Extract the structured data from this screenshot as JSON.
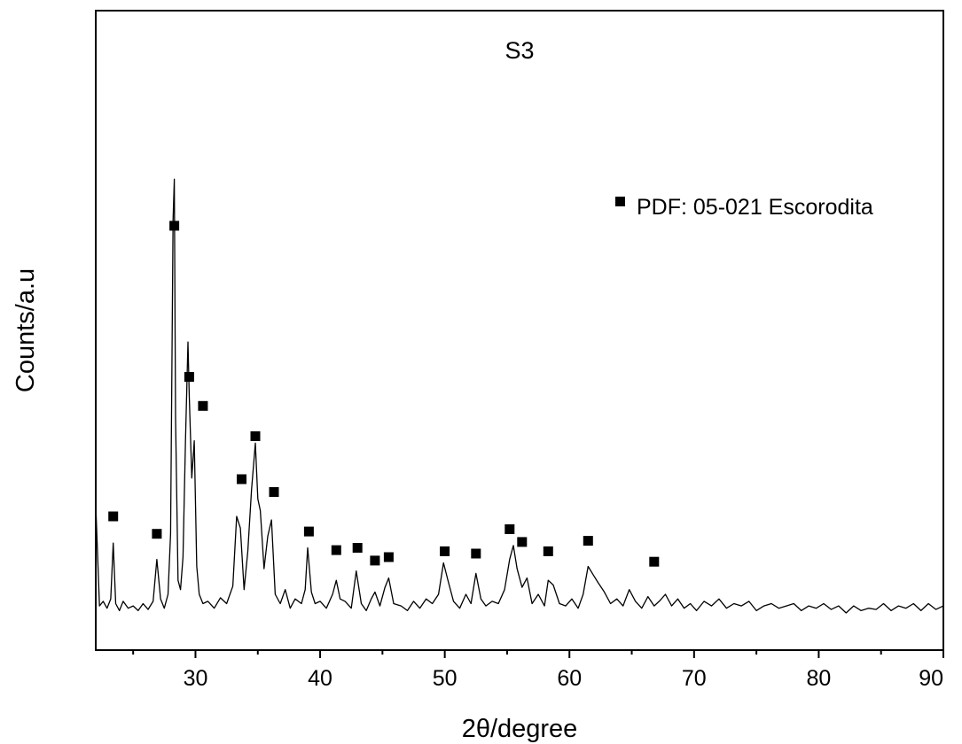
{
  "chart_data": {
    "type": "line",
    "title": "S3",
    "xlabel": "2θ/degree",
    "ylabel": "Counts/a.u",
    "xlim": [
      22,
      90
    ],
    "ylim": [
      -30,
      520
    ],
    "x_ticks": [
      30,
      40,
      50,
      60,
      70,
      80,
      90
    ],
    "x_tick_labels": [
      "30",
      "40",
      "50",
      "60",
      "70",
      "80",
      "90"
    ],
    "grid": false,
    "legend": {
      "position": "top-right",
      "entries": [
        {
          "marker": "filled-square",
          "label": "PDF: 05-021 Escorodita"
        }
      ]
    },
    "series": [
      {
        "style": "line",
        "x": [
          22.0,
          22.3,
          22.6,
          22.9,
          23.2,
          23.4,
          23.6,
          23.9,
          24.2,
          24.6,
          25.0,
          25.4,
          25.8,
          26.2,
          26.6,
          26.9,
          27.2,
          27.5,
          27.8,
          28.0,
          28.2,
          28.3,
          28.4,
          28.6,
          28.8,
          29.0,
          29.2,
          29.4,
          29.5,
          29.7,
          29.9,
          30.1,
          30.3,
          30.6,
          31.0,
          31.5,
          32.0,
          32.5,
          33.0,
          33.3,
          33.6,
          33.9,
          34.2,
          34.5,
          34.8,
          35.0,
          35.2,
          35.5,
          35.8,
          36.1,
          36.4,
          36.8,
          37.2,
          37.6,
          38.0,
          38.5,
          38.8,
          39.0,
          39.3,
          39.6,
          40.0,
          40.5,
          41.0,
          41.3,
          41.6,
          42.0,
          42.5,
          42.9,
          43.3,
          43.7,
          44.1,
          44.4,
          44.8,
          45.2,
          45.5,
          45.9,
          46.5,
          47.0,
          47.5,
          48.0,
          48.5,
          49.0,
          49.5,
          49.9,
          50.3,
          50.7,
          51.2,
          51.7,
          52.1,
          52.5,
          52.9,
          53.3,
          53.8,
          54.3,
          54.8,
          55.2,
          55.5,
          55.8,
          56.2,
          56.6,
          57.0,
          57.5,
          58.0,
          58.3,
          58.7,
          59.2,
          59.7,
          60.2,
          60.7,
          61.1,
          61.5,
          61.9,
          62.3,
          62.8,
          63.3,
          63.8,
          64.3,
          64.8,
          65.3,
          65.8,
          66.3,
          66.8,
          67.2,
          67.7,
          68.2,
          68.7,
          69.2,
          69.7,
          70.2,
          70.8,
          71.4,
          72.0,
          72.6,
          73.2,
          73.8,
          74.4,
          75.0,
          75.6,
          76.2,
          76.8,
          77.4,
          78.0,
          78.6,
          79.2,
          79.8,
          80.4,
          81.0,
          81.6,
          82.2,
          82.8,
          83.4,
          84.0,
          84.6,
          85.2,
          85.8,
          86.4,
          87.0,
          87.6,
          88.2,
          88.8,
          89.4,
          90.0
        ],
        "y": [
          95,
          8,
          12,
          6,
          14,
          62,
          10,
          4,
          12,
          6,
          8,
          4,
          10,
          5,
          12,
          48,
          14,
          6,
          18,
          70,
          340,
          375,
          170,
          30,
          22,
          50,
          150,
          235,
          190,
          118,
          150,
          42,
          18,
          10,
          12,
          6,
          15,
          10,
          25,
          85,
          75,
          22,
          55,
          108,
          148,
          100,
          90,
          40,
          68,
          82,
          18,
          10,
          22,
          6,
          14,
          10,
          22,
          58,
          20,
          10,
          12,
          6,
          18,
          30,
          14,
          12,
          6,
          38,
          10,
          4,
          14,
          20,
          8,
          24,
          32,
          10,
          8,
          4,
          12,
          6,
          14,
          10,
          18,
          45,
          28,
          12,
          6,
          18,
          10,
          36,
          14,
          8,
          12,
          10,
          22,
          48,
          60,
          40,
          24,
          32,
          10,
          18,
          8,
          30,
          26,
          10,
          8,
          14,
          6,
          18,
          42,
          35,
          28,
          20,
          10,
          14,
          8,
          22,
          12,
          6,
          16,
          8,
          12,
          18,
          8,
          14,
          6,
          10,
          4,
          12,
          8,
          14,
          6,
          10,
          8,
          12,
          4,
          8,
          10,
          6,
          8,
          10,
          4,
          8,
          6,
          10,
          5,
          8,
          2,
          8,
          4,
          6,
          5,
          10,
          4,
          8,
          6,
          10,
          4,
          10,
          5,
          8
        ]
      },
      {
        "style": "markers",
        "marker": "filled-square",
        "x": [
          23.4,
          26.9,
          28.3,
          29.5,
          30.6,
          33.7,
          34.8,
          36.3,
          39.1,
          41.3,
          43.0,
          44.4,
          45.5,
          50.0,
          52.5,
          55.2,
          56.2,
          58.3,
          61.5,
          66.8
        ],
        "y": [
          85,
          70,
          335,
          205,
          180,
          117,
          154,
          106,
          72,
          56,
          58,
          47,
          50,
          55,
          53,
          74,
          63,
          55,
          64,
          46
        ]
      }
    ]
  }
}
